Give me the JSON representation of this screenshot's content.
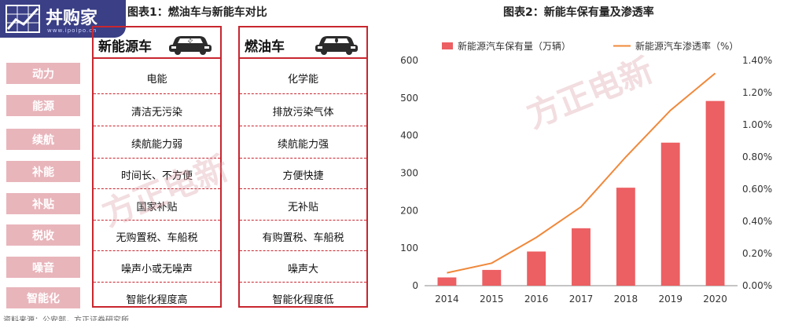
{
  "logo": {
    "text": "丼购家",
    "subtext": "www.ipoipo.cn"
  },
  "figure1": {
    "title": "图表1：燃油车与新能车对比",
    "categories": [
      "动力",
      "能源",
      "续航",
      "补能",
      "补贴",
      "税收",
      "噪音",
      "智能化"
    ],
    "ev": {
      "title": "新能源车",
      "cells": [
        "电能",
        "清洁无污染",
        "续航能力弱",
        "时间长、不方便",
        "国家补贴",
        "无购置税、车船税",
        "噪声小或无噪声",
        "智能化程度高"
      ]
    },
    "ice": {
      "title": "燃油车",
      "cells": [
        "化学能",
        "排放污染气体",
        "续航能力强",
        "方便快捷",
        "无补贴",
        "有购置税、车船税",
        "噪声大",
        "智能化程度低"
      ]
    }
  },
  "figure2": {
    "title": "图表2：新能车保有量及渗透率"
  },
  "watermarks": [
    "方正电新",
    "方正电新"
  ],
  "source_note": "资料来源：公安部，方正证券研究所",
  "colors": {
    "bar": "#ec5f62",
    "line": "#f0883a",
    "border": "#c8262f",
    "category_bg": "#e8b5bb",
    "logo_bg": "#3a3f86"
  },
  "chart_data": {
    "type": "bar",
    "categories": [
      "2014",
      "2015",
      "2016",
      "2017",
      "2018",
      "2019",
      "2020"
    ],
    "series": [
      {
        "name": "新能源汽车保有量（万辆）",
        "type": "bar",
        "axis": "left",
        "values": [
          22,
          42,
          91,
          153,
          261,
          381,
          492
        ]
      },
      {
        "name": "新能源汽车渗透率（%）",
        "type": "line",
        "axis": "right",
        "values": [
          0.08,
          0.14,
          0.3,
          0.49,
          0.8,
          1.09,
          1.32
        ]
      }
    ],
    "y_left": {
      "lim": [
        0,
        600
      ],
      "ticks": [
        "0",
        "100",
        "200",
        "300",
        "400",
        "500",
        "600"
      ]
    },
    "y_right": {
      "lim": [
        0,
        1.4
      ],
      "ticks": [
        "0.00%",
        "0.20%",
        "0.40%",
        "0.60%",
        "0.80%",
        "1.00%",
        "1.20%",
        "1.40%"
      ]
    },
    "legend_position": "top",
    "grid": false
  }
}
